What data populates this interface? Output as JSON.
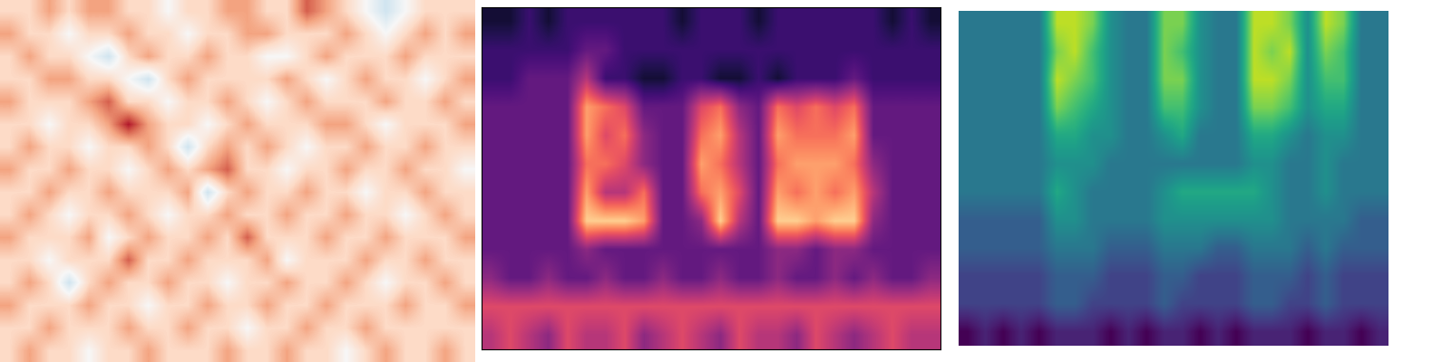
{
  "chart_data": [
    {
      "type": "heatmap",
      "color": "RdBu_r",
      "tick_labels": false,
      "color_range": [
        0,
        10
      ],
      "cells": [
        [
          6,
          6,
          7,
          6,
          7,
          7,
          6,
          6,
          5,
          6,
          6,
          7,
          7,
          6,
          6,
          8,
          7,
          6,
          5,
          4,
          5,
          6,
          6,
          6
        ],
        [
          7,
          6,
          6,
          5,
          6,
          6,
          7,
          6,
          6,
          5,
          6,
          6,
          7,
          7,
          6,
          6,
          6,
          7,
          6,
          5,
          6,
          7,
          6,
          7
        ],
        [
          6,
          7,
          6,
          6,
          5,
          4,
          6,
          7,
          6,
          6,
          7,
          6,
          6,
          5,
          5,
          6,
          7,
          6,
          6,
          6,
          7,
          6,
          6,
          6
        ],
        [
          6,
          6,
          7,
          7,
          6,
          6,
          5,
          4,
          6,
          7,
          6,
          6,
          6,
          6,
          7,
          6,
          5,
          6,
          7,
          6,
          6,
          5,
          6,
          7
        ],
        [
          7,
          6,
          6,
          6,
          7,
          8,
          6,
          6,
          5,
          6,
          6,
          7,
          6,
          5,
          6,
          7,
          6,
          6,
          6,
          7,
          6,
          6,
          7,
          6
        ],
        [
          6,
          6,
          5,
          6,
          6,
          7,
          9,
          7,
          6,
          6,
          5,
          6,
          7,
          6,
          6,
          6,
          7,
          7,
          6,
          5,
          6,
          6,
          6,
          7
        ],
        [
          6,
          7,
          6,
          6,
          5,
          6,
          6,
          7,
          6,
          4,
          6,
          7,
          6,
          7,
          6,
          5,
          6,
          6,
          7,
          6,
          6,
          7,
          6,
          6
        ],
        [
          7,
          6,
          6,
          7,
          6,
          6,
          5,
          6,
          7,
          6,
          7,
          8,
          6,
          6,
          5,
          6,
          6,
          7,
          6,
          6,
          7,
          6,
          6,
          5
        ],
        [
          6,
          6,
          7,
          6,
          6,
          7,
          6,
          6,
          6,
          7,
          4,
          6,
          7,
          6,
          6,
          7,
          6,
          6,
          5,
          6,
          6,
          7,
          6,
          6
        ],
        [
          6,
          7,
          6,
          5,
          6,
          6,
          7,
          6,
          5,
          6,
          6,
          7,
          6,
          6,
          7,
          6,
          6,
          7,
          6,
          6,
          5,
          6,
          7,
          6
        ],
        [
          7,
          6,
          6,
          6,
          7,
          5,
          6,
          7,
          6,
          6,
          7,
          6,
          8,
          6,
          6,
          6,
          7,
          6,
          6,
          7,
          6,
          6,
          6,
          7
        ],
        [
          6,
          6,
          5,
          6,
          6,
          6,
          8,
          6,
          6,
          7,
          6,
          6,
          6,
          7,
          5,
          6,
          6,
          6,
          7,
          6,
          6,
          7,
          6,
          6
        ],
        [
          6,
          7,
          6,
          4,
          6,
          7,
          6,
          6,
          7,
          6,
          6,
          5,
          6,
          6,
          7,
          6,
          6,
          7,
          6,
          5,
          6,
          6,
          7,
          6
        ],
        [
          7,
          6,
          6,
          6,
          7,
          6,
          6,
          5,
          6,
          6,
          7,
          6,
          6,
          7,
          6,
          6,
          7,
          6,
          6,
          6,
          7,
          6,
          6,
          7
        ],
        [
          6,
          6,
          7,
          6,
          6,
          6,
          7,
          6,
          6,
          7,
          6,
          6,
          5,
          6,
          6,
          7,
          6,
          6,
          7,
          6,
          6,
          6,
          6,
          6
        ],
        [
          6,
          7,
          6,
          6,
          5,
          6,
          6,
          7,
          6,
          6,
          6,
          7,
          6,
          6,
          7,
          6,
          6,
          5,
          6,
          7,
          6,
          6,
          7,
          6
        ]
      ]
    },
    {
      "type": "heatmap",
      "color": "magma",
      "tick_labels": false,
      "color_range": [
        0,
        10
      ],
      "cells": [
        [
          1,
          1,
          2,
          1,
          2,
          2,
          2,
          2,
          2,
          2,
          1,
          2,
          2,
          2,
          1,
          2,
          2,
          2,
          2,
          2,
          2,
          1,
          2,
          1
        ],
        [
          2,
          2,
          2,
          2,
          2,
          3,
          3,
          2,
          2,
          2,
          2,
          2,
          2,
          2,
          2,
          2,
          2,
          2,
          2,
          2,
          2,
          2,
          2,
          2
        ],
        [
          2,
          2,
          3,
          3,
          3,
          5,
          2,
          2,
          1,
          1,
          2,
          2,
          1,
          1,
          2,
          1,
          2,
          2,
          2,
          3,
          2,
          2,
          2,
          2
        ],
        [
          3,
          3,
          3,
          3,
          3,
          8,
          7,
          6,
          3,
          3,
          3,
          6,
          7,
          4,
          3,
          7,
          6,
          7,
          6,
          7,
          3,
          3,
          3,
          3
        ],
        [
          3,
          3,
          3,
          3,
          3,
          8,
          6,
          7,
          4,
          3,
          3,
          7,
          8,
          5,
          3,
          8,
          7,
          7,
          7,
          8,
          3,
          3,
          3,
          3
        ],
        [
          3,
          3,
          3,
          3,
          3,
          7,
          7,
          6,
          4,
          3,
          3,
          8,
          7,
          5,
          3,
          7,
          8,
          8,
          8,
          7,
          4,
          3,
          3,
          3
        ],
        [
          3,
          3,
          3,
          3,
          3,
          8,
          5,
          5,
          7,
          3,
          3,
          7,
          8,
          6,
          3,
          8,
          7,
          8,
          7,
          8,
          5,
          3,
          3,
          3
        ],
        [
          3,
          3,
          3,
          3,
          3,
          9,
          9,
          9,
          8,
          3,
          3,
          4,
          9,
          5,
          3,
          9,
          9,
          8,
          9,
          9,
          4,
          3,
          3,
          3
        ],
        [
          3,
          3,
          3,
          3,
          3,
          4,
          3,
          3,
          3,
          3,
          3,
          3,
          3,
          3,
          3,
          4,
          4,
          3,
          4,
          4,
          3,
          3,
          3,
          3
        ],
        [
          4,
          3,
          3,
          4,
          3,
          3,
          4,
          3,
          3,
          4,
          3,
          3,
          4,
          3,
          3,
          4,
          3,
          3,
          4,
          3,
          4,
          3,
          3,
          4
        ],
        [
          6,
          6,
          6,
          6,
          6,
          6,
          6,
          6,
          6,
          6,
          6,
          6,
          6,
          6,
          6,
          6,
          6,
          6,
          6,
          6,
          6,
          6,
          6,
          6
        ],
        [
          5,
          6,
          5,
          4,
          6,
          5,
          5,
          6,
          4,
          5,
          6,
          5,
          4,
          6,
          5,
          5,
          4,
          6,
          5,
          4,
          5,
          6,
          5,
          5
        ]
      ]
    },
    {
      "type": "heatmap",
      "color": "viridis",
      "tick_labels": false,
      "color_range": [
        0,
        10
      ],
      "cells": [
        [
          4,
          4,
          4,
          4,
          4,
          9,
          9,
          8,
          5,
          4,
          4,
          8,
          8,
          5,
          4,
          4,
          9,
          9,
          8,
          5,
          9,
          8,
          4,
          4
        ],
        [
          4,
          4,
          4,
          4,
          4,
          8,
          9,
          7,
          5,
          4,
          4,
          8,
          7,
          5,
          4,
          4,
          9,
          8,
          9,
          5,
          8,
          7,
          4,
          4
        ],
        [
          4,
          4,
          4,
          4,
          4,
          9,
          8,
          7,
          5,
          4,
          4,
          8,
          8,
          5,
          4,
          4,
          9,
          9,
          8,
          5,
          7,
          7,
          4,
          4
        ],
        [
          4,
          4,
          4,
          4,
          4,
          8,
          7,
          6,
          5,
          4,
          4,
          7,
          7,
          5,
          4,
          4,
          8,
          8,
          7,
          5,
          6,
          6,
          4,
          4
        ],
        [
          4,
          4,
          4,
          4,
          4,
          6,
          6,
          5,
          5,
          4,
          4,
          5,
          6,
          4,
          4,
          4,
          6,
          6,
          5,
          4,
          5,
          5,
          4,
          4
        ],
        [
          4,
          4,
          4,
          4,
          4,
          5,
          5,
          5,
          4,
          4,
          4,
          4,
          4,
          4,
          4,
          4,
          5,
          5,
          4,
          4,
          5,
          4,
          4,
          4
        ],
        [
          4,
          4,
          4,
          4,
          4,
          6,
          5,
          4,
          4,
          4,
          4,
          5,
          6,
          6,
          6,
          6,
          6,
          5,
          4,
          4,
          5,
          4,
          4,
          4
        ],
        [
          3,
          3,
          3,
          3,
          3,
          5,
          5,
          4,
          4,
          4,
          4,
          5,
          5,
          5,
          5,
          5,
          5,
          5,
          4,
          4,
          4,
          4,
          3,
          3
        ],
        [
          3,
          3,
          3,
          3,
          3,
          4,
          4,
          4,
          3,
          3,
          3,
          4,
          4,
          4,
          3,
          3,
          4,
          4,
          4,
          3,
          4,
          3,
          3,
          3
        ],
        [
          2,
          2,
          2,
          2,
          2,
          3,
          3,
          3,
          2,
          2,
          2,
          3,
          3,
          2,
          2,
          2,
          3,
          3,
          3,
          2,
          3,
          2,
          2,
          2
        ],
        [
          2,
          2,
          2,
          2,
          2,
          3,
          3,
          2,
          2,
          2,
          2,
          3,
          2,
          2,
          2,
          2,
          3,
          3,
          2,
          2,
          3,
          2,
          2,
          2
        ],
        [
          0,
          1,
          0,
          1,
          0,
          1,
          1,
          1,
          0,
          1,
          0,
          1,
          1,
          0,
          1,
          0,
          1,
          1,
          1,
          0,
          1,
          1,
          0,
          1
        ]
      ]
    }
  ]
}
